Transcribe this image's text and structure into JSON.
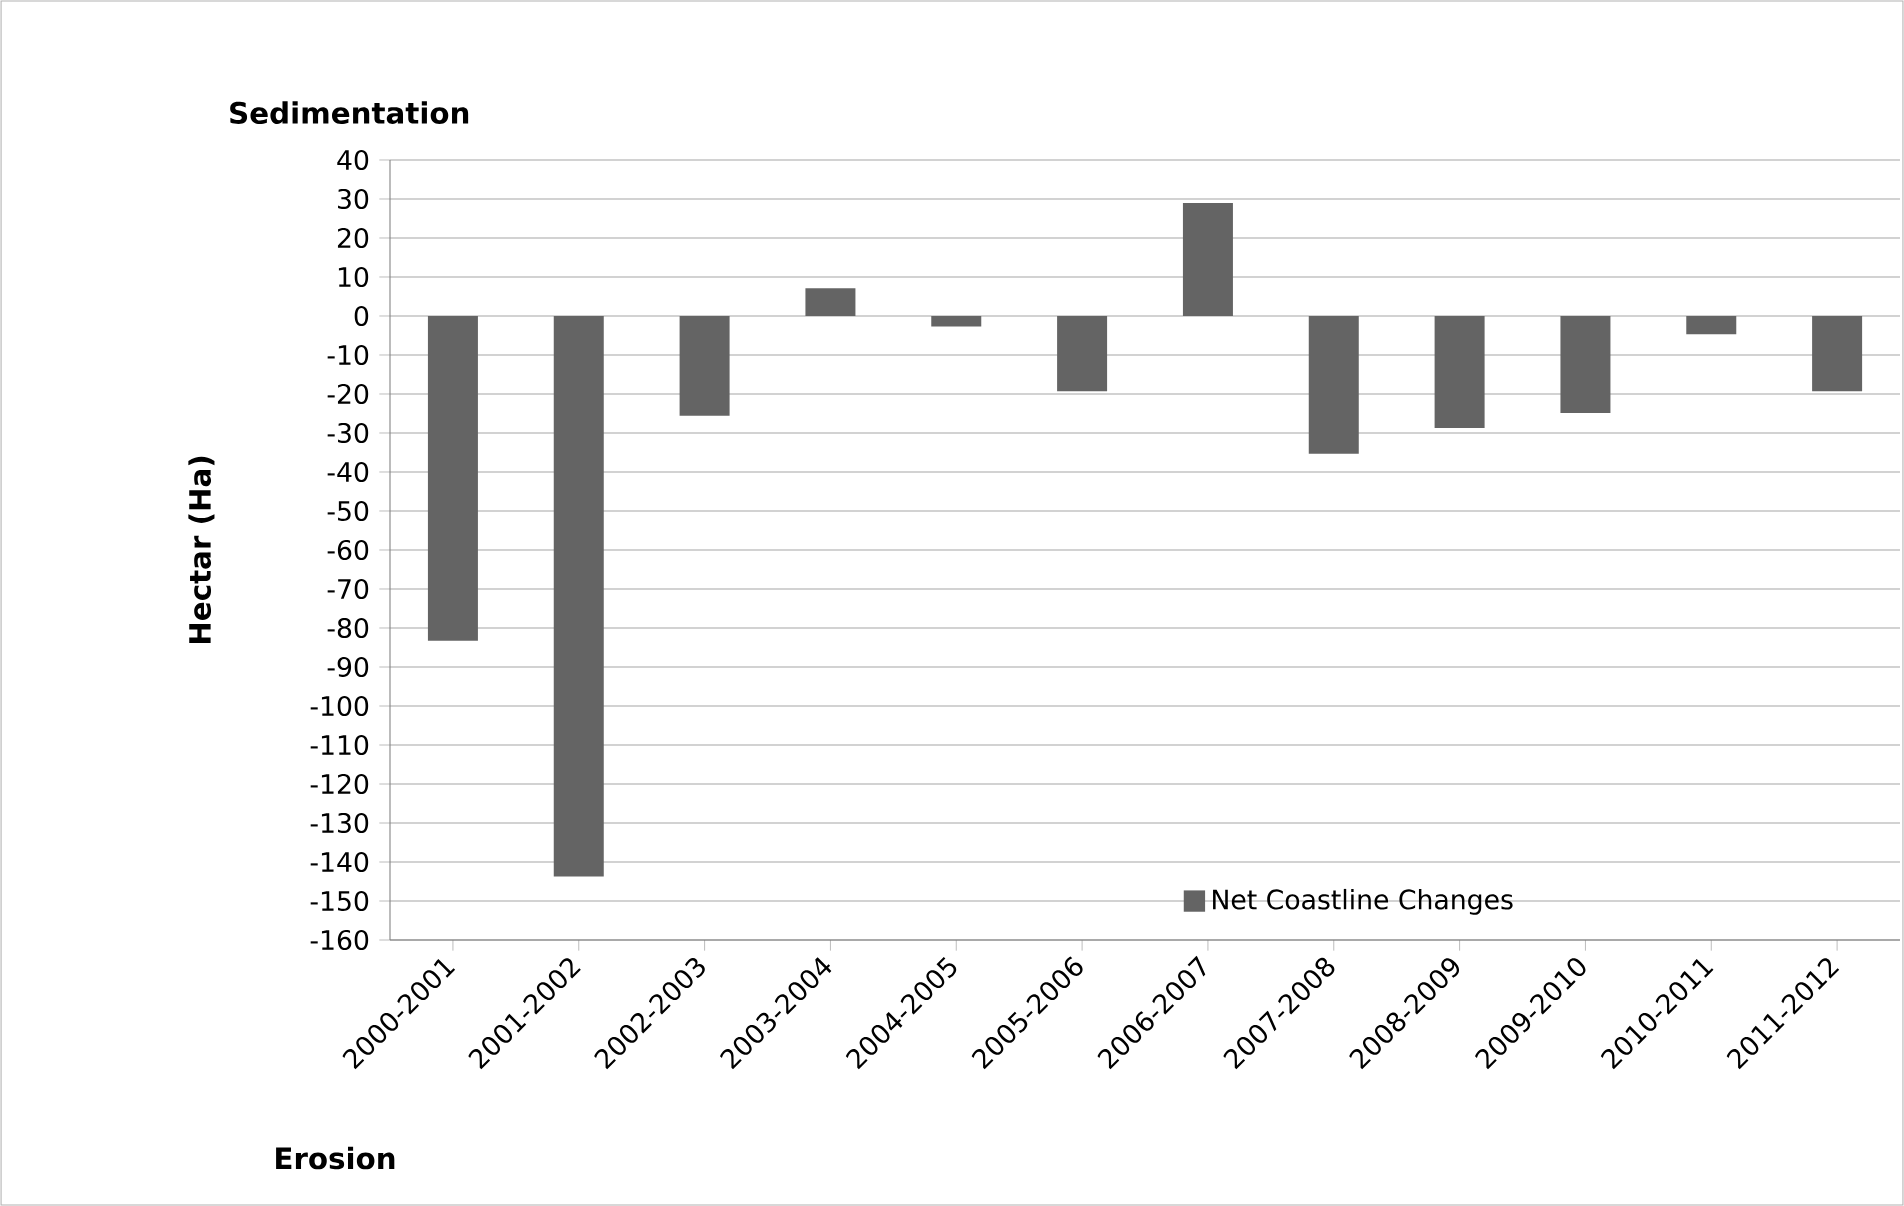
{
  "chart_data": {
    "type": "bar",
    "ylabel": "Hectar (Ha)",
    "annotations": [
      "Sedimentation",
      "Erosion"
    ],
    "categories": [
      "2000-2001",
      "2001-2002",
      "2002-2003",
      "2003-2004",
      "2004-2005",
      "2005-2006",
      "2006-2007",
      "2007-2008",
      "2008-2009",
      "2009-2010",
      "2010-2011",
      "2011-2012"
    ],
    "series": [
      {
        "name": "Net Coastline Changes",
        "color": "#646464",
        "values": [
          -83.3,
          -143.7,
          -25.6,
          7.1,
          -2.7,
          -19.3,
          29,
          -35.3,
          -28.7,
          -24.9,
          -4.7,
          -19.3
        ]
      }
    ],
    "ylim": [
      -160,
      40
    ],
    "yticks": [
      -160,
      -150,
      -140,
      -130,
      -120,
      -110,
      -100,
      -90,
      -80,
      -70,
      -60,
      -50,
      -40,
      -30,
      -20,
      -10,
      0,
      10,
      20,
      30,
      40
    ],
    "grid": "y",
    "legend": "bottom right"
  }
}
